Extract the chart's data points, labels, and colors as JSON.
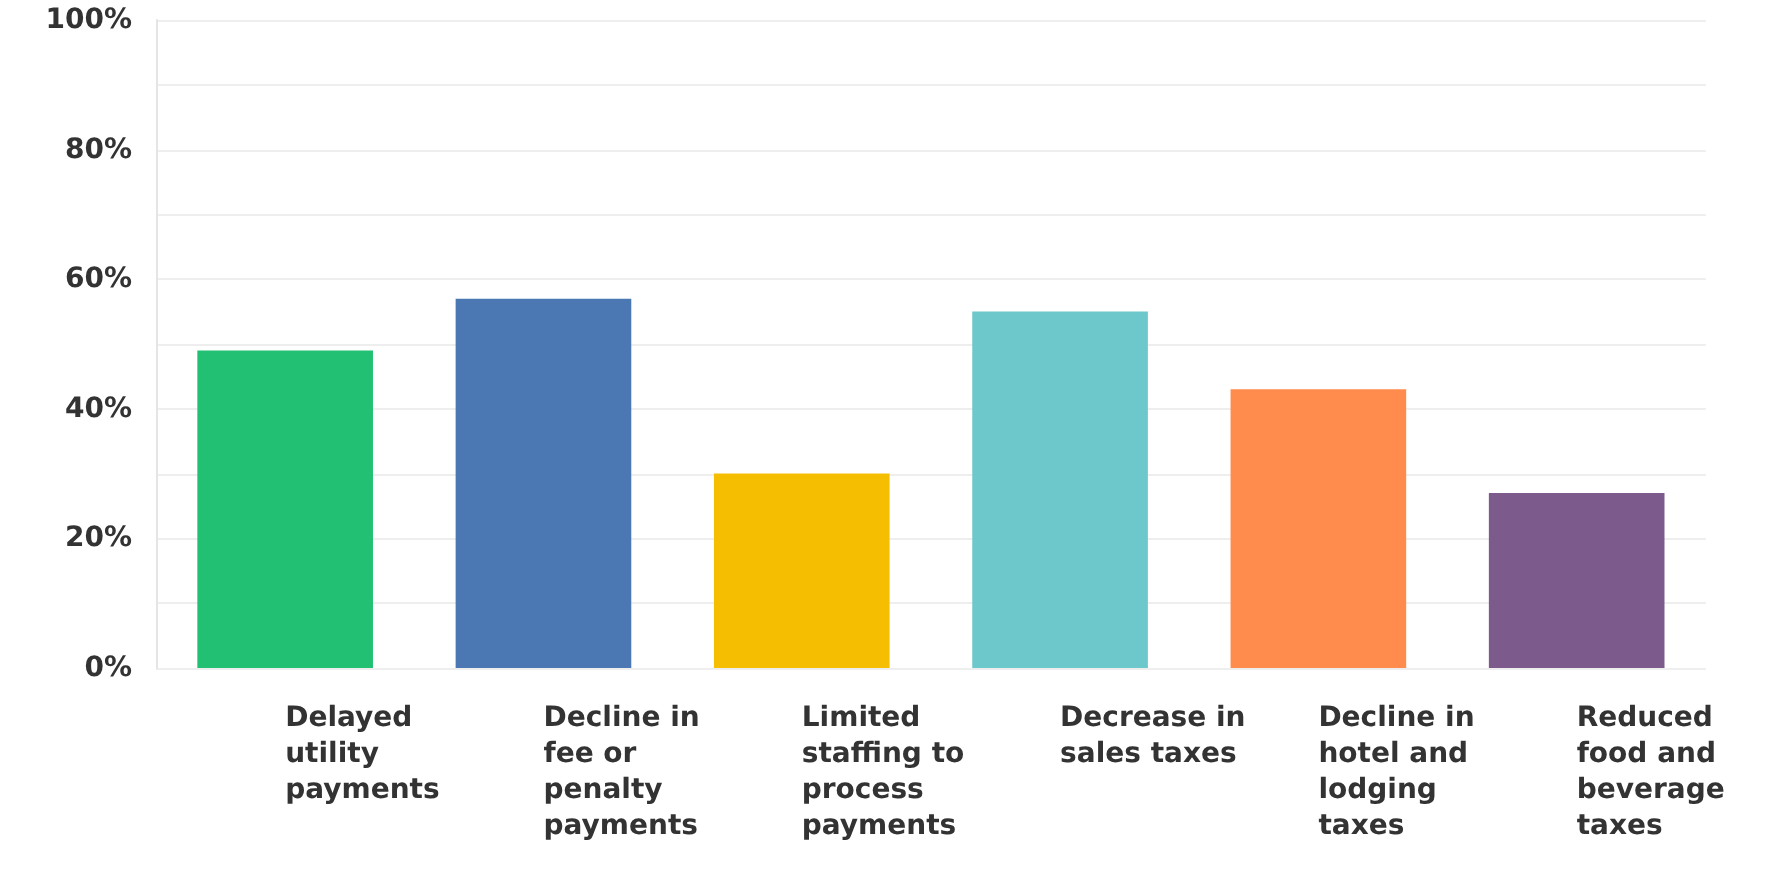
{
  "chart_data": {
    "type": "bar",
    "categories": [
      "Delayed utility payments",
      "Decline in fee or penalty payments",
      "Limited staffing to process payments",
      "Decrease in sales taxes",
      "Decline in hotel and lodging taxes",
      "Reduced food and beverage taxes"
    ],
    "values": [
      49,
      57,
      30,
      55,
      43,
      27
    ],
    "colors": [
      "#21c072",
      "#4b78b2",
      "#f6be00",
      "#6dc8cb",
      "#ff8b4c",
      "#7d5a8c"
    ],
    "ylim": [
      0,
      100
    ],
    "yticks": [
      {
        "value": 0,
        "label": "0%"
      },
      {
        "value": 10,
        "label": null
      },
      {
        "value": 20,
        "label": "20%"
      },
      {
        "value": 30,
        "label": null
      },
      {
        "value": 40,
        "label": "40%"
      },
      {
        "value": 50,
        "label": null
      },
      {
        "value": 60,
        "label": "60%"
      },
      {
        "value": 70,
        "label": null
      },
      {
        "value": 80,
        "label": "80%"
      },
      {
        "value": 90,
        "label": null
      },
      {
        "value": 100,
        "label": "100%"
      }
    ],
    "grid": "y"
  }
}
